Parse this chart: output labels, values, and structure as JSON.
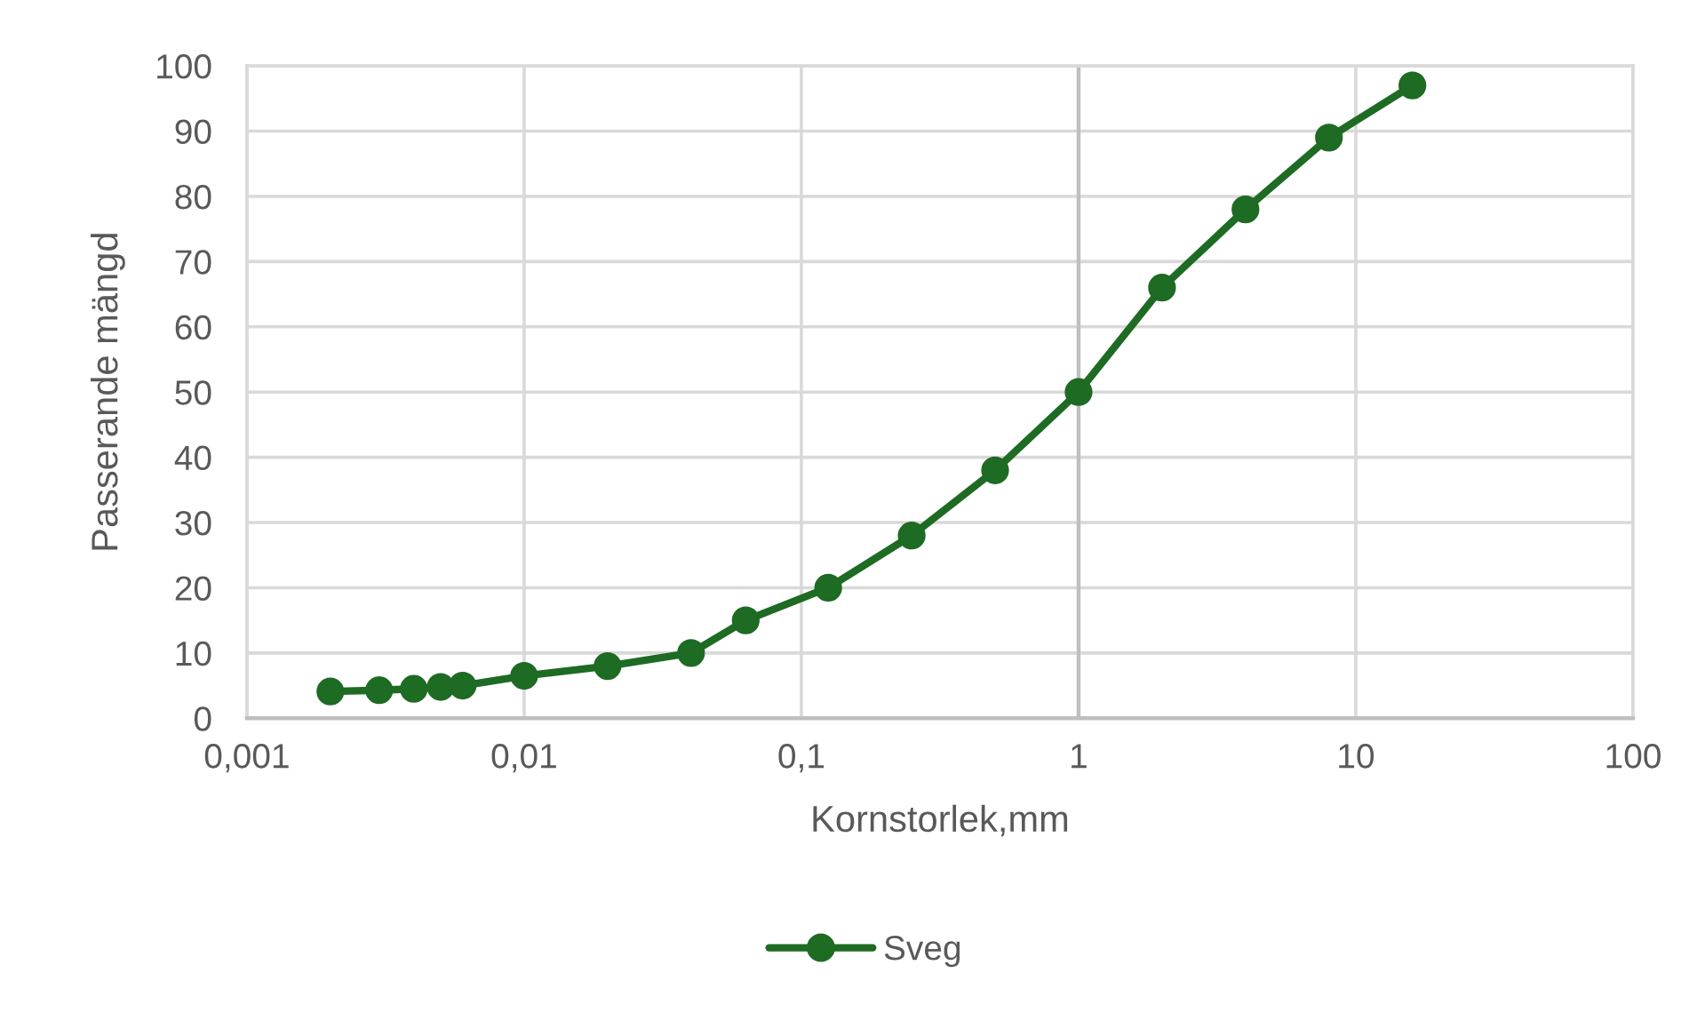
{
  "chart_data": {
    "type": "line",
    "xlabel": "Kornstorlek,mm",
    "ylabel": "Passerande mängd",
    "x": [
      0.002,
      0.003,
      0.004,
      0.005,
      0.006,
      0.01,
      0.02,
      0.04,
      0.063,
      0.125,
      0.25,
      0.5,
      1,
      2,
      4,
      8,
      16
    ],
    "series": [
      {
        "name": "Sveg",
        "color": "#1e6b24",
        "values": [
          4.1,
          4.3,
          4.5,
          4.8,
          5,
          6.5,
          8,
          10,
          15,
          20,
          28,
          38,
          50,
          66,
          78,
          89,
          97
        ]
      }
    ],
    "log": "x",
    "xlim": [
      0.001,
      100
    ],
    "xticks": [
      {
        "value": 0.001,
        "label": "0,001"
      },
      {
        "value": 0.01,
        "label": "0,01"
      },
      {
        "value": 0.1,
        "label": "0,1"
      },
      1,
      10,
      100
    ],
    "ylim": [
      0,
      100
    ],
    "yticks": [
      0,
      10,
      20,
      30,
      40,
      50,
      60,
      70,
      80,
      90,
      100
    ],
    "ref_lines": [
      {
        "axis": "x",
        "value": 1,
        "color": "#bfbfbf"
      }
    ],
    "grid": true,
    "legend": "bottom",
    "marker": "circle",
    "line_style": "solid"
  }
}
